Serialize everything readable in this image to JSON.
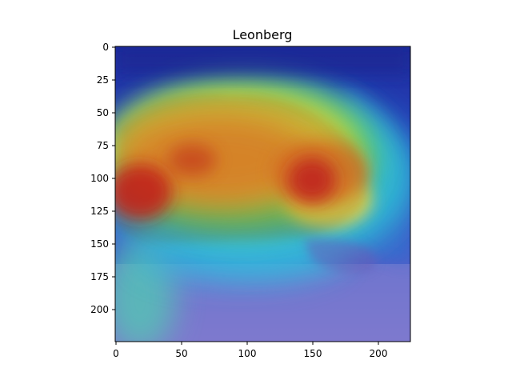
{
  "figure": {
    "title": "Leonberg",
    "x_ticks": [
      "0",
      "50",
      "100",
      "150",
      "200"
    ],
    "y_ticks": [
      "0",
      "25",
      "50",
      "75",
      "100",
      "125",
      "150",
      "175",
      "200"
    ]
  },
  "image": {
    "subject": "dog",
    "overlay": "heatmap",
    "colors": {
      "background_blue": "#3a4bb0",
      "deep_blue": "#1f2a9a",
      "cyan": "#2fc3d6",
      "green": "#6fd24b",
      "yellow": "#f1d03a",
      "orange": "#f08a2a",
      "red": "#d71f1f",
      "floor_violet": "#8a86d4"
    }
  }
}
